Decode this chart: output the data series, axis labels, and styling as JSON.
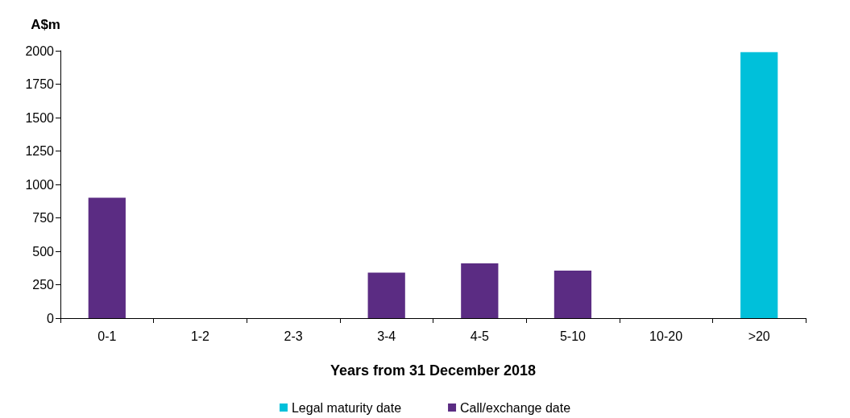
{
  "chart_data": {
    "type": "bar",
    "xlabel": "Years from 31 December 2018",
    "ylabel": "A$m",
    "categories": [
      "0-1",
      "1-2",
      "2-3",
      "3-4",
      "4-5",
      "5-10",
      "10-20",
      ">20"
    ],
    "series": [
      {
        "name": "Legal maturity date",
        "color": "#00c0da",
        "values": [
          null,
          null,
          null,
          null,
          null,
          null,
          null,
          1990
        ]
      },
      {
        "name": "Call/exchange date",
        "color": "#5b2c83",
        "values": [
          900,
          null,
          null,
          340,
          410,
          355,
          null,
          null
        ]
      }
    ],
    "stacked": true,
    "ylim": [
      0,
      2000
    ],
    "yticks": [
      0,
      250,
      500,
      750,
      1000,
      1250,
      1500,
      1750,
      2000
    ],
    "grid": false,
    "legend": "bottom"
  }
}
